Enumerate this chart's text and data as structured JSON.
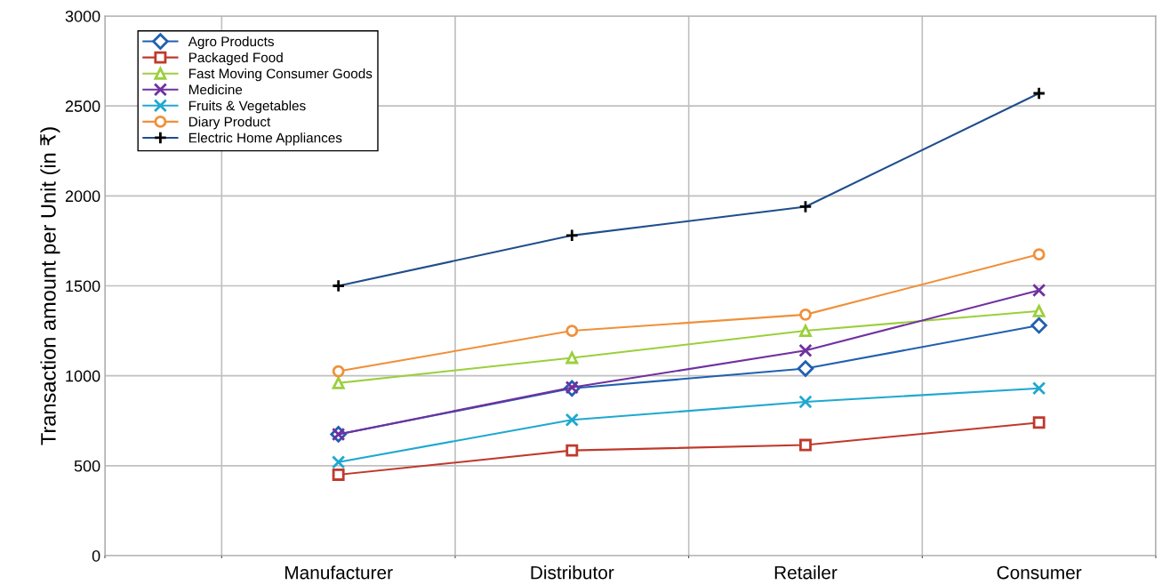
{
  "chart_data": {
    "type": "line",
    "ylabel": "Transaction amount per Unit (in ₹)",
    "categories": [
      "Manufacturer",
      "Distributor",
      "Retailer",
      "Consumer"
    ],
    "ylim": [
      0,
      3000
    ],
    "yticks": [
      0,
      500,
      1000,
      1500,
      2000,
      2500,
      3000
    ],
    "grid": true,
    "legend": "top left",
    "series": [
      {
        "name": "Agro Products",
        "color": "#2060b0",
        "marker": "diamond",
        "values": [
          675,
          930,
          1040,
          1280
        ]
      },
      {
        "name": "Packaged Food",
        "color": "#c0392b",
        "marker": "square",
        "values": [
          450,
          585,
          615,
          740
        ]
      },
      {
        "name": "Fast Moving Consumer Goods",
        "color": "#9bcf3c",
        "marker": "triangle",
        "values": [
          960,
          1100,
          1250,
          1360
        ]
      },
      {
        "name": "Medicine",
        "color": "#7030a0",
        "marker": "x",
        "values": [
          675,
          935,
          1140,
          1475
        ]
      },
      {
        "name": "Fruits & Vegetables",
        "color": "#1fa8d0",
        "marker": "x",
        "values": [
          520,
          755,
          855,
          930
        ]
      },
      {
        "name": "Diary Product",
        "color": "#f0903a",
        "marker": "circle",
        "values": [
          1025,
          1250,
          1340,
          1675
        ]
      },
      {
        "name": "Electric Home Appliances",
        "color": "#1f4e8c",
        "marker": "cross",
        "values": [
          1500,
          1780,
          1940,
          2570
        ]
      }
    ]
  }
}
